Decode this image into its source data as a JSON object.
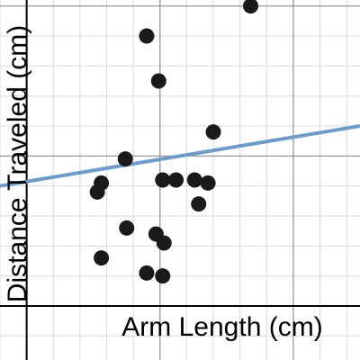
{
  "chart_data": {
    "type": "scatter",
    "title": "",
    "xlabel": "Arm Length (cm)",
    "ylabel": "Distance Traveled (cm)",
    "xlim": [
      -1,
      12.5
    ],
    "ylim": [
      -1.8,
      10.2
    ],
    "grid": true,
    "colors": {
      "points": "#1a1a1a",
      "trend_line": "#6b9ccc",
      "grid_minor": "#d9d9d9",
      "grid_major": "#8c8c8c",
      "axis": "#000000"
    },
    "points": [
      {
        "x": 4.5,
        "y": 9.0
      },
      {
        "x": 4.95,
        "y": 7.5
      },
      {
        "x": 8.4,
        "y": 10.0
      },
      {
        "x": 7.0,
        "y": 5.8
      },
      {
        "x": 3.7,
        "y": 4.9
      },
      {
        "x": 2.8,
        "y": 4.1
      },
      {
        "x": 2.65,
        "y": 3.8
      },
      {
        "x": 5.1,
        "y": 4.2
      },
      {
        "x": 5.6,
        "y": 4.2
      },
      {
        "x": 6.3,
        "y": 4.2
      },
      {
        "x": 6.8,
        "y": 4.1
      },
      {
        "x": 6.45,
        "y": 3.4
      },
      {
        "x": 3.75,
        "y": 2.6
      },
      {
        "x": 4.85,
        "y": 2.4
      },
      {
        "x": 5.15,
        "y": 2.1
      },
      {
        "x": 2.8,
        "y": 1.6
      },
      {
        "x": 4.5,
        "y": 1.1
      },
      {
        "x": 5.1,
        "y": 1.0
      }
    ],
    "trend_line": {
      "x": [
        -1,
        12.5
      ],
      "y": [
        4.0,
        6.0
      ]
    }
  }
}
